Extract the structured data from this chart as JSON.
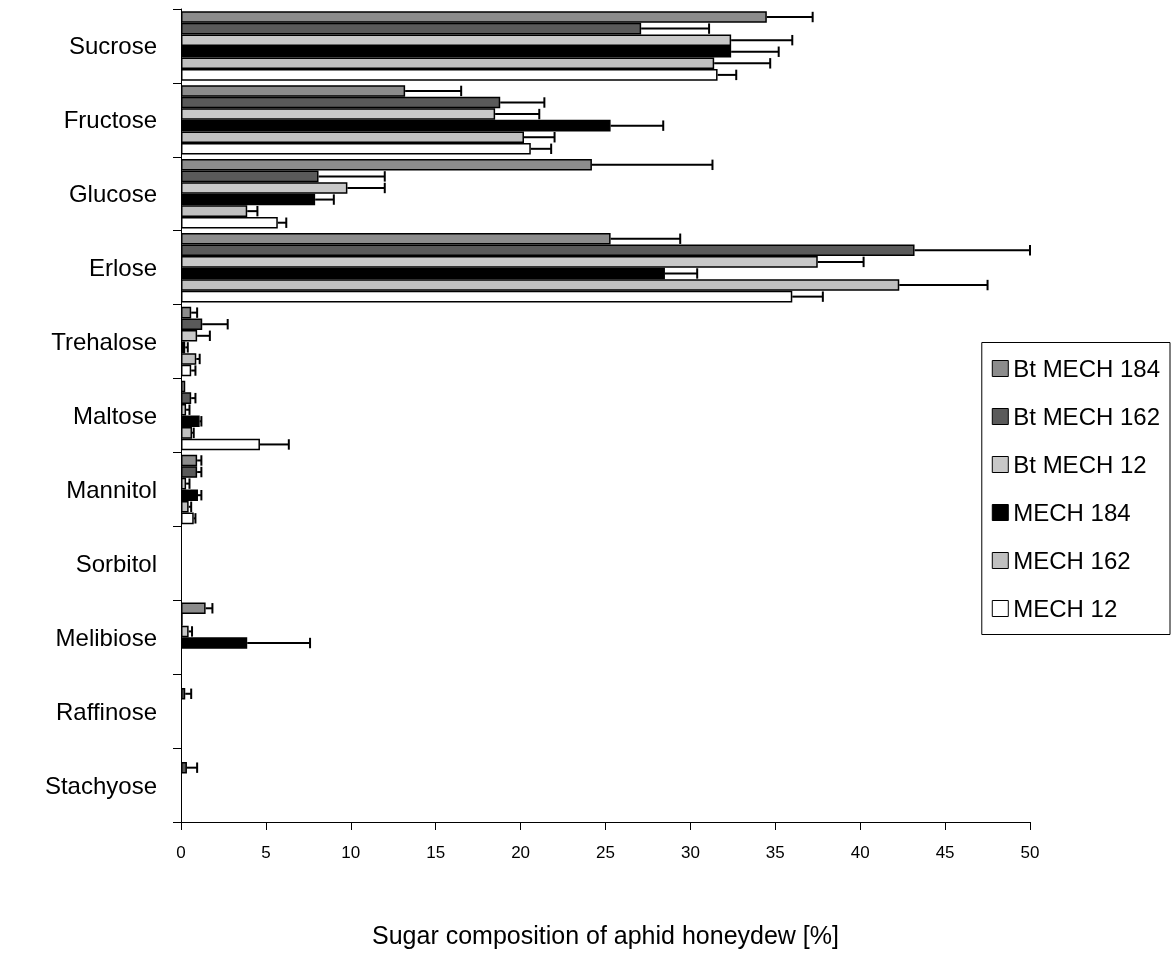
{
  "chart_data": {
    "type": "bar",
    "orientation": "horizontal",
    "xlabel": "Sugar composition of aphid honeydew [%]",
    "categories": [
      "Sucrose",
      "Fructose",
      "Glucose",
      "Erlose",
      "Trehalose",
      "Maltose",
      "Mannitol",
      "Sorbitol",
      "Melibiose",
      "Raffinose",
      "Stachyose"
    ],
    "xlim": [
      0,
      50
    ],
    "xticks": [
      0,
      5,
      10,
      15,
      20,
      25,
      30,
      35,
      40,
      45,
      50
    ],
    "grid": false,
    "legend": "right",
    "series": [
      {
        "name": "Bt MECH 184",
        "color": "#8c8c8c",
        "values": [
          34.5,
          13.2,
          24.2,
          25.3,
          0.6,
          0.25,
          0.95,
          0,
          1.45,
          0,
          0
        ],
        "errors": [
          [
            34.5,
            37.2
          ],
          [
            13.2,
            16.5
          ],
          [
            24.2,
            31.3
          ],
          [
            25.3,
            29.4
          ],
          [
            0.6,
            0.95
          ],
          null,
          [
            0.95,
            1.2
          ],
          null,
          [
            1.45,
            1.85
          ],
          null,
          null
        ]
      },
      {
        "name": "Bt MECH 162",
        "color": "#5a5a5a",
        "values": [
          27.1,
          18.8,
          8.1,
          43.2,
          1.25,
          0.6,
          0.95,
          0,
          0.1,
          0.25,
          0.35
        ],
        "errors": [
          [
            27.1,
            31.1
          ],
          [
            18.8,
            21.4
          ],
          [
            8.1,
            12.0
          ],
          [
            43.2,
            50.0
          ],
          [
            1.25,
            2.75
          ],
          [
            0.6,
            0.85
          ],
          [
            0.95,
            1.2
          ],
          null,
          null,
          [
            0.25,
            0.6
          ],
          [
            0.35,
            0.95
          ]
        ]
      },
      {
        "name": "Bt MECH 12",
        "color": "#c8c8c8",
        "values": [
          32.4,
          18.5,
          9.8,
          37.5,
          0.95,
          0.3,
          0.3,
          0,
          0.45,
          0,
          0
        ],
        "errors": [
          [
            32.4,
            36.0
          ],
          [
            18.5,
            21.1
          ],
          [
            9.8,
            12.0
          ],
          [
            37.5,
            40.2
          ],
          [
            0.95,
            1.7
          ],
          [
            0.3,
            0.5
          ],
          [
            0.3,
            0.5
          ],
          null,
          [
            0.45,
            0.65
          ],
          null,
          null
        ]
      },
      {
        "name": "MECH 184",
        "color": "#000000",
        "values": [
          32.4,
          25.3,
          7.9,
          28.5,
          0.25,
          1.1,
          1.0,
          0,
          3.9,
          0,
          0
        ],
        "errors": [
          [
            32.4,
            35.2
          ],
          [
            25.3,
            28.4
          ],
          [
            7.9,
            9.0
          ],
          [
            28.5,
            30.4
          ],
          [
            0.25,
            0.4
          ],
          [
            1.1,
            1.2
          ],
          [
            1.0,
            1.2
          ],
          null,
          [
            3.9,
            7.6
          ],
          null,
          null
        ]
      },
      {
        "name": "MECH 162",
        "color": "#c0c0c0",
        "values": [
          31.4,
          20.2,
          3.9,
          42.3,
          0.9,
          0.65,
          0.45,
          0,
          null,
          0,
          0
        ],
        "errors": [
          [
            31.4,
            34.7
          ],
          [
            20.2,
            22.0
          ],
          [
            3.9,
            4.5
          ],
          [
            42.3,
            47.5
          ],
          [
            0.9,
            1.1
          ],
          [
            0.65,
            0.75
          ],
          [
            0.45,
            0.6
          ],
          null,
          null,
          null,
          null
        ]
      },
      {
        "name": "MECH 12",
        "color": "#ffffff",
        "values": [
          31.6,
          20.6,
          5.7,
          36.0,
          0.6,
          4.65,
          0.75,
          0,
          null,
          0,
          0
        ],
        "errors": [
          [
            31.6,
            32.7
          ],
          [
            20.6,
            21.8
          ],
          [
            5.7,
            6.2
          ],
          [
            36.0,
            37.8
          ],
          [
            0.6,
            0.85
          ],
          [
            4.65,
            6.35
          ],
          [
            0.75,
            0.85
          ],
          null,
          null,
          null,
          null
        ]
      }
    ]
  }
}
